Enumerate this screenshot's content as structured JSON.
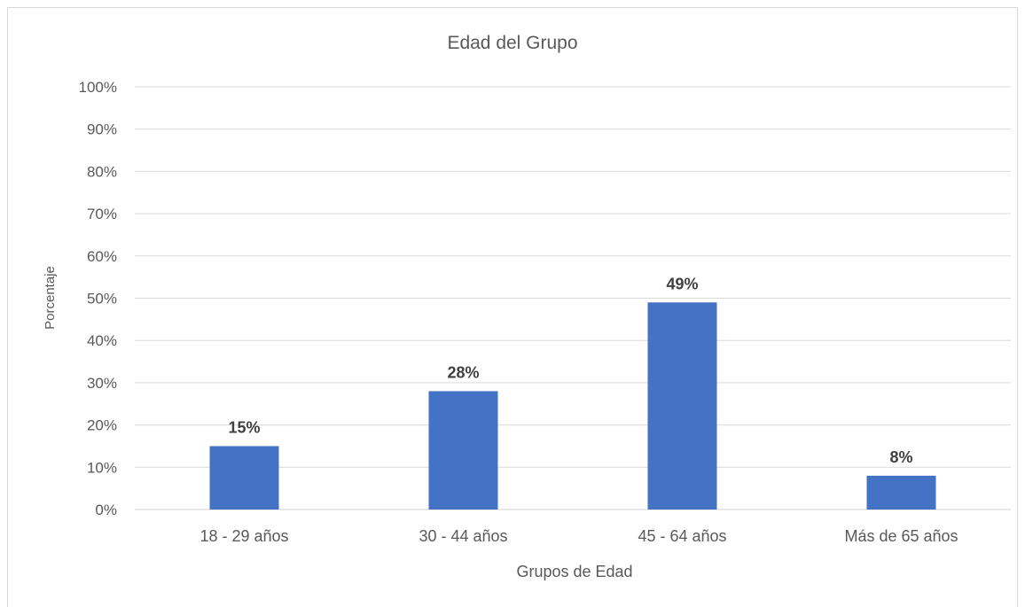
{
  "chart_data": {
    "type": "bar",
    "title": "Edad del Grupo",
    "xlabel": "Grupos de Edad",
    "ylabel": "Porcentaje",
    "categories": [
      "18 - 29 años",
      "30 - 44 años",
      "45 - 64 años",
      "Más de 65 años"
    ],
    "series": [
      {
        "values": [
          15,
          28,
          49,
          8
        ],
        "labels": [
          "15%",
          "28%",
          "49%",
          "8%"
        ],
        "color": "#4472c4"
      }
    ],
    "ylim": [
      0,
      100
    ],
    "yticks": [
      0,
      10,
      20,
      30,
      40,
      50,
      60,
      70,
      80,
      90,
      100
    ],
    "ytick_labels": [
      "0%",
      "10%",
      "20%",
      "30%",
      "40%",
      "50%",
      "60%",
      "70%",
      "80%",
      "90%",
      "100%"
    ],
    "grid": true,
    "legend": "none"
  }
}
